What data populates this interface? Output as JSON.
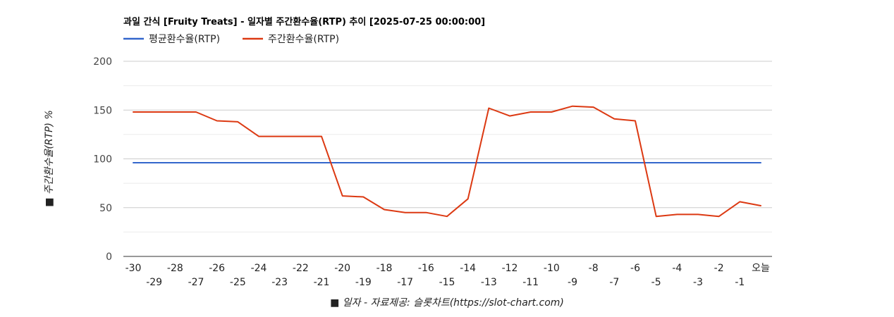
{
  "chart_data": {
    "type": "line",
    "title": "과일 간식 [Fruity Treats] - 일자별 주간환수율(RTP) 추이 [2025-07-25 00:00:00]",
    "xlabel": "■ 일자 - 자료제공: 슬롯차트(https://slot-chart.com)",
    "ylabel": "■ 주간환수율(RTP) %",
    "ylim": [
      0,
      200
    ],
    "yticks": [
      0,
      50,
      100,
      150,
      200
    ],
    "grid": true,
    "legend_position": "top-left",
    "categories": [
      "-30",
      "-29",
      "-28",
      "-27",
      "-26",
      "-25",
      "-24",
      "-23",
      "-22",
      "-21",
      "-20",
      "-19",
      "-18",
      "-17",
      "-16",
      "-15",
      "-14",
      "-13",
      "-12",
      "-11",
      "-10",
      "-9",
      "-8",
      "-7",
      "-6",
      "-5",
      "-4",
      "-3",
      "-2",
      "-1",
      "오늘"
    ],
    "series": [
      {
        "name": "평균환수율(RTP)",
        "color": "#3366cc",
        "values": [
          96,
          96,
          96,
          96,
          96,
          96,
          96,
          96,
          96,
          96,
          96,
          96,
          96,
          96,
          96,
          96,
          96,
          96,
          96,
          96,
          96,
          96,
          96,
          96,
          96,
          96,
          96,
          96,
          96,
          96,
          96
        ]
      },
      {
        "name": "주간환수율(RTP)",
        "color": "#dc3912",
        "values": [
          148,
          148,
          148,
          148,
          139,
          138,
          123,
          123,
          123,
          123,
          62,
          61,
          48,
          45,
          45,
          41,
          59,
          152,
          144,
          148,
          148,
          154,
          153,
          141,
          139,
          41,
          43,
          43,
          41,
          56,
          52
        ]
      }
    ]
  }
}
